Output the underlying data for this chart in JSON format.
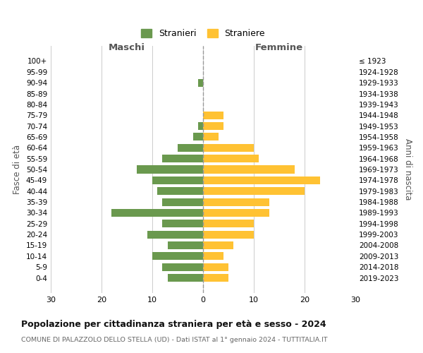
{
  "age_groups": [
    "0-4",
    "5-9",
    "10-14",
    "15-19",
    "20-24",
    "25-29",
    "30-34",
    "35-39",
    "40-44",
    "45-49",
    "50-54",
    "55-59",
    "60-64",
    "65-69",
    "70-74",
    "75-79",
    "80-84",
    "85-89",
    "90-94",
    "95-99",
    "100+"
  ],
  "birth_years": [
    "2019-2023",
    "2014-2018",
    "2009-2013",
    "2004-2008",
    "1999-2003",
    "1994-1998",
    "1989-1993",
    "1984-1988",
    "1979-1983",
    "1974-1978",
    "1969-1973",
    "1964-1968",
    "1959-1963",
    "1954-1958",
    "1949-1953",
    "1944-1948",
    "1939-1943",
    "1934-1938",
    "1929-1933",
    "1924-1928",
    "≤ 1923"
  ],
  "maschi": [
    7,
    8,
    10,
    7,
    11,
    8,
    18,
    8,
    9,
    10,
    13,
    8,
    5,
    2,
    1,
    0,
    0,
    0,
    1,
    0,
    0
  ],
  "femmine": [
    5,
    5,
    4,
    6,
    10,
    10,
    13,
    13,
    20,
    23,
    18,
    11,
    10,
    3,
    4,
    4,
    0,
    0,
    0,
    0,
    0
  ],
  "maschi_color": "#6a994e",
  "femmine_color": "#ffc233",
  "background_color": "#ffffff",
  "grid_color": "#cccccc",
  "title": "Popolazione per cittadinanza straniera per età e sesso - 2024",
  "subtitle": "COMUNE DI PALAZZOLO DELLO STELLA (UD) - Dati ISTAT al 1° gennaio 2024 - TUTTITALIA.IT",
  "xlabel_left": "Maschi",
  "xlabel_right": "Femmine",
  "ylabel_left": "Fasce di età",
  "ylabel_right": "Anni di nascita",
  "xlim": 30,
  "legend_maschi": "Stranieri",
  "legend_femmine": "Straniere"
}
